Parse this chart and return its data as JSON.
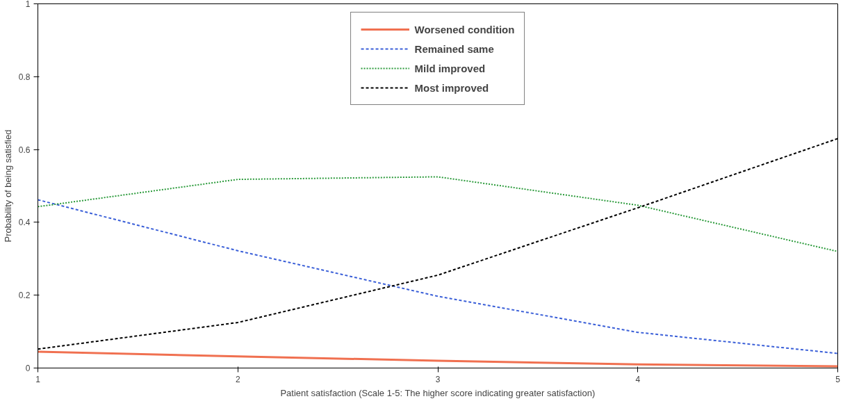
{
  "chart_data": {
    "type": "line",
    "xlabel": "Patient satisfaction (Scale 1-5: The higher score indicating greater satisfaction)",
    "ylabel": "Probability of being satisfied",
    "x": [
      1,
      2,
      3,
      4,
      5
    ],
    "xlim": [
      1,
      5
    ],
    "xticks": [
      1,
      2,
      3,
      4,
      5
    ],
    "ylim": [
      0,
      1
    ],
    "yticks": [
      0,
      0.2,
      0.4,
      0.6,
      0.8,
      1
    ],
    "grid": false,
    "legend": "top",
    "marker": "none",
    "series": [
      {
        "name": "Worsened condition",
        "color": "#f07050",
        "line_style": "solid",
        "values": [
          0.045,
          0.032,
          0.02,
          0.01,
          0.005
        ]
      },
      {
        "name": "Remained same",
        "color": "#3a5fd8",
        "line_style": "dashed",
        "values": [
          0.462,
          0.322,
          0.197,
          0.098,
          0.04
        ]
      },
      {
        "name": "Mild improved",
        "color": "#2a9a3a",
        "line_style": "dotted",
        "values": [
          0.443,
          0.518,
          0.525,
          0.447,
          0.32
        ]
      },
      {
        "name": "Most improved",
        "color": "#000000",
        "line_style": "dashed",
        "values": [
          0.052,
          0.125,
          0.255,
          0.44,
          0.63
        ]
      }
    ]
  }
}
